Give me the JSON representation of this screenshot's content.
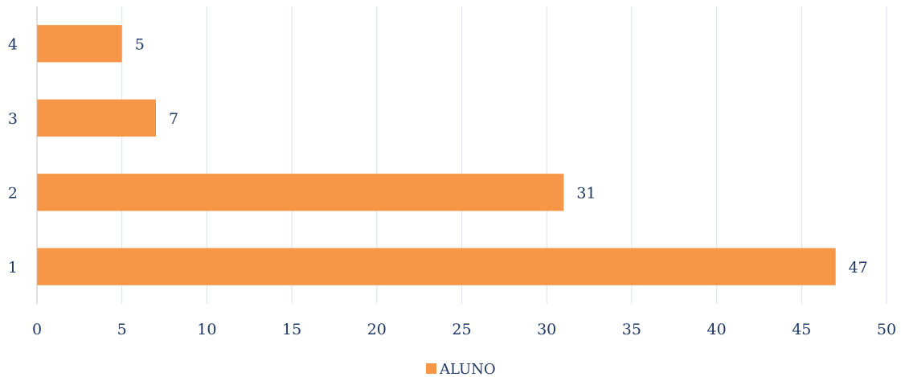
{
  "chart_data": {
    "type": "bar",
    "orientation": "horizontal",
    "categories": [
      "1",
      "2",
      "3",
      "4"
    ],
    "series": [
      {
        "name": "ALUNO",
        "values": [
          47,
          31,
          7,
          5
        ]
      }
    ],
    "title": "",
    "xlabel": "",
    "ylabel": "",
    "xlim": [
      0,
      50
    ],
    "xticks": [
      "0",
      "5",
      "10",
      "15",
      "20",
      "25",
      "30",
      "35",
      "40",
      "45",
      "50"
    ],
    "grid": "vertical",
    "legend": "bottom",
    "colors": {
      "bar": "#f79646",
      "grid": "#d9e2ee",
      "axis": "#bfbfbf",
      "text": "#1f3864"
    }
  }
}
